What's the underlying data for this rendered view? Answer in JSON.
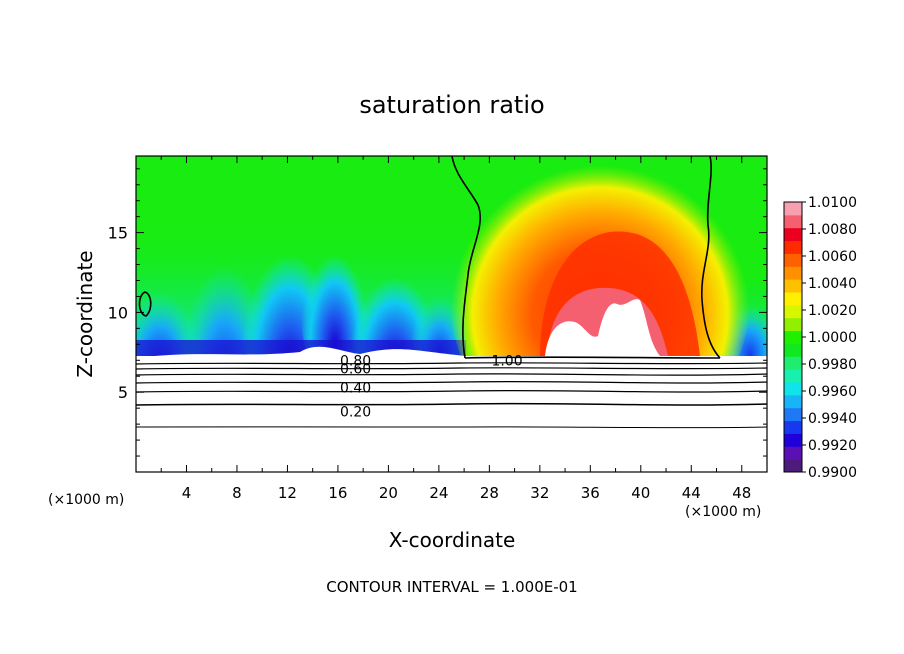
{
  "chart_data": {
    "type": "heatmap",
    "title": "saturation ratio",
    "xlabel": "X-coordinate",
    "ylabel": "Z-coordinate",
    "x_unit_label": "(×1000 m)",
    "x_unit_label_right": "(×1000 m)",
    "footer": "CONTOUR INTERVAL = 1.000E-01",
    "xlim": [
      0,
      50
    ],
    "ylim": [
      0,
      19.8
    ],
    "x_ticks": [
      4,
      8,
      12,
      16,
      20,
      24,
      28,
      32,
      36,
      40,
      44,
      48
    ],
    "y_ticks": [
      5,
      10,
      15
    ],
    "x_tick_labels": [
      "4",
      "8",
      "12",
      "16",
      "20",
      "24",
      "28",
      "32",
      "36",
      "40",
      "44",
      "48"
    ],
    "y_tick_labels": [
      "5",
      "10",
      "15"
    ],
    "colorbar": {
      "min": 0.99,
      "max": 1.01,
      "tick_labels": [
        "1.0100",
        "1.0080",
        "1.0060",
        "1.0040",
        "1.0020",
        "1.0000",
        "0.9980",
        "0.9960",
        "0.9940",
        "0.9920",
        "0.9900"
      ],
      "colors": [
        "#4b1c7a",
        "#5a10b5",
        "#1f00d8",
        "#1838f0",
        "#1f78f5",
        "#18b4f8",
        "#10e4ea",
        "#18f0b0",
        "#20ec70",
        "#10e820",
        "#20f000",
        "#90f000",
        "#d8f600",
        "#fff000",
        "#ffc000",
        "#ff9000",
        "#ff6000",
        "#ff2a00",
        "#ec0020",
        "#f46070",
        "#f8a0b0"
      ]
    },
    "contour_labels": [
      {
        "text": "1.00",
        "x": 29.4,
        "y": 7.0
      },
      {
        "text": "0.80",
        "x": 17.4,
        "y": 7.0
      },
      {
        "text": "0.60",
        "x": 17.4,
        "y": 6.5
      },
      {
        "text": "0.40",
        "x": 17.4,
        "y": 5.3
      },
      {
        "text": "0.20",
        "x": 17.4,
        "y": 3.8
      }
    ]
  }
}
